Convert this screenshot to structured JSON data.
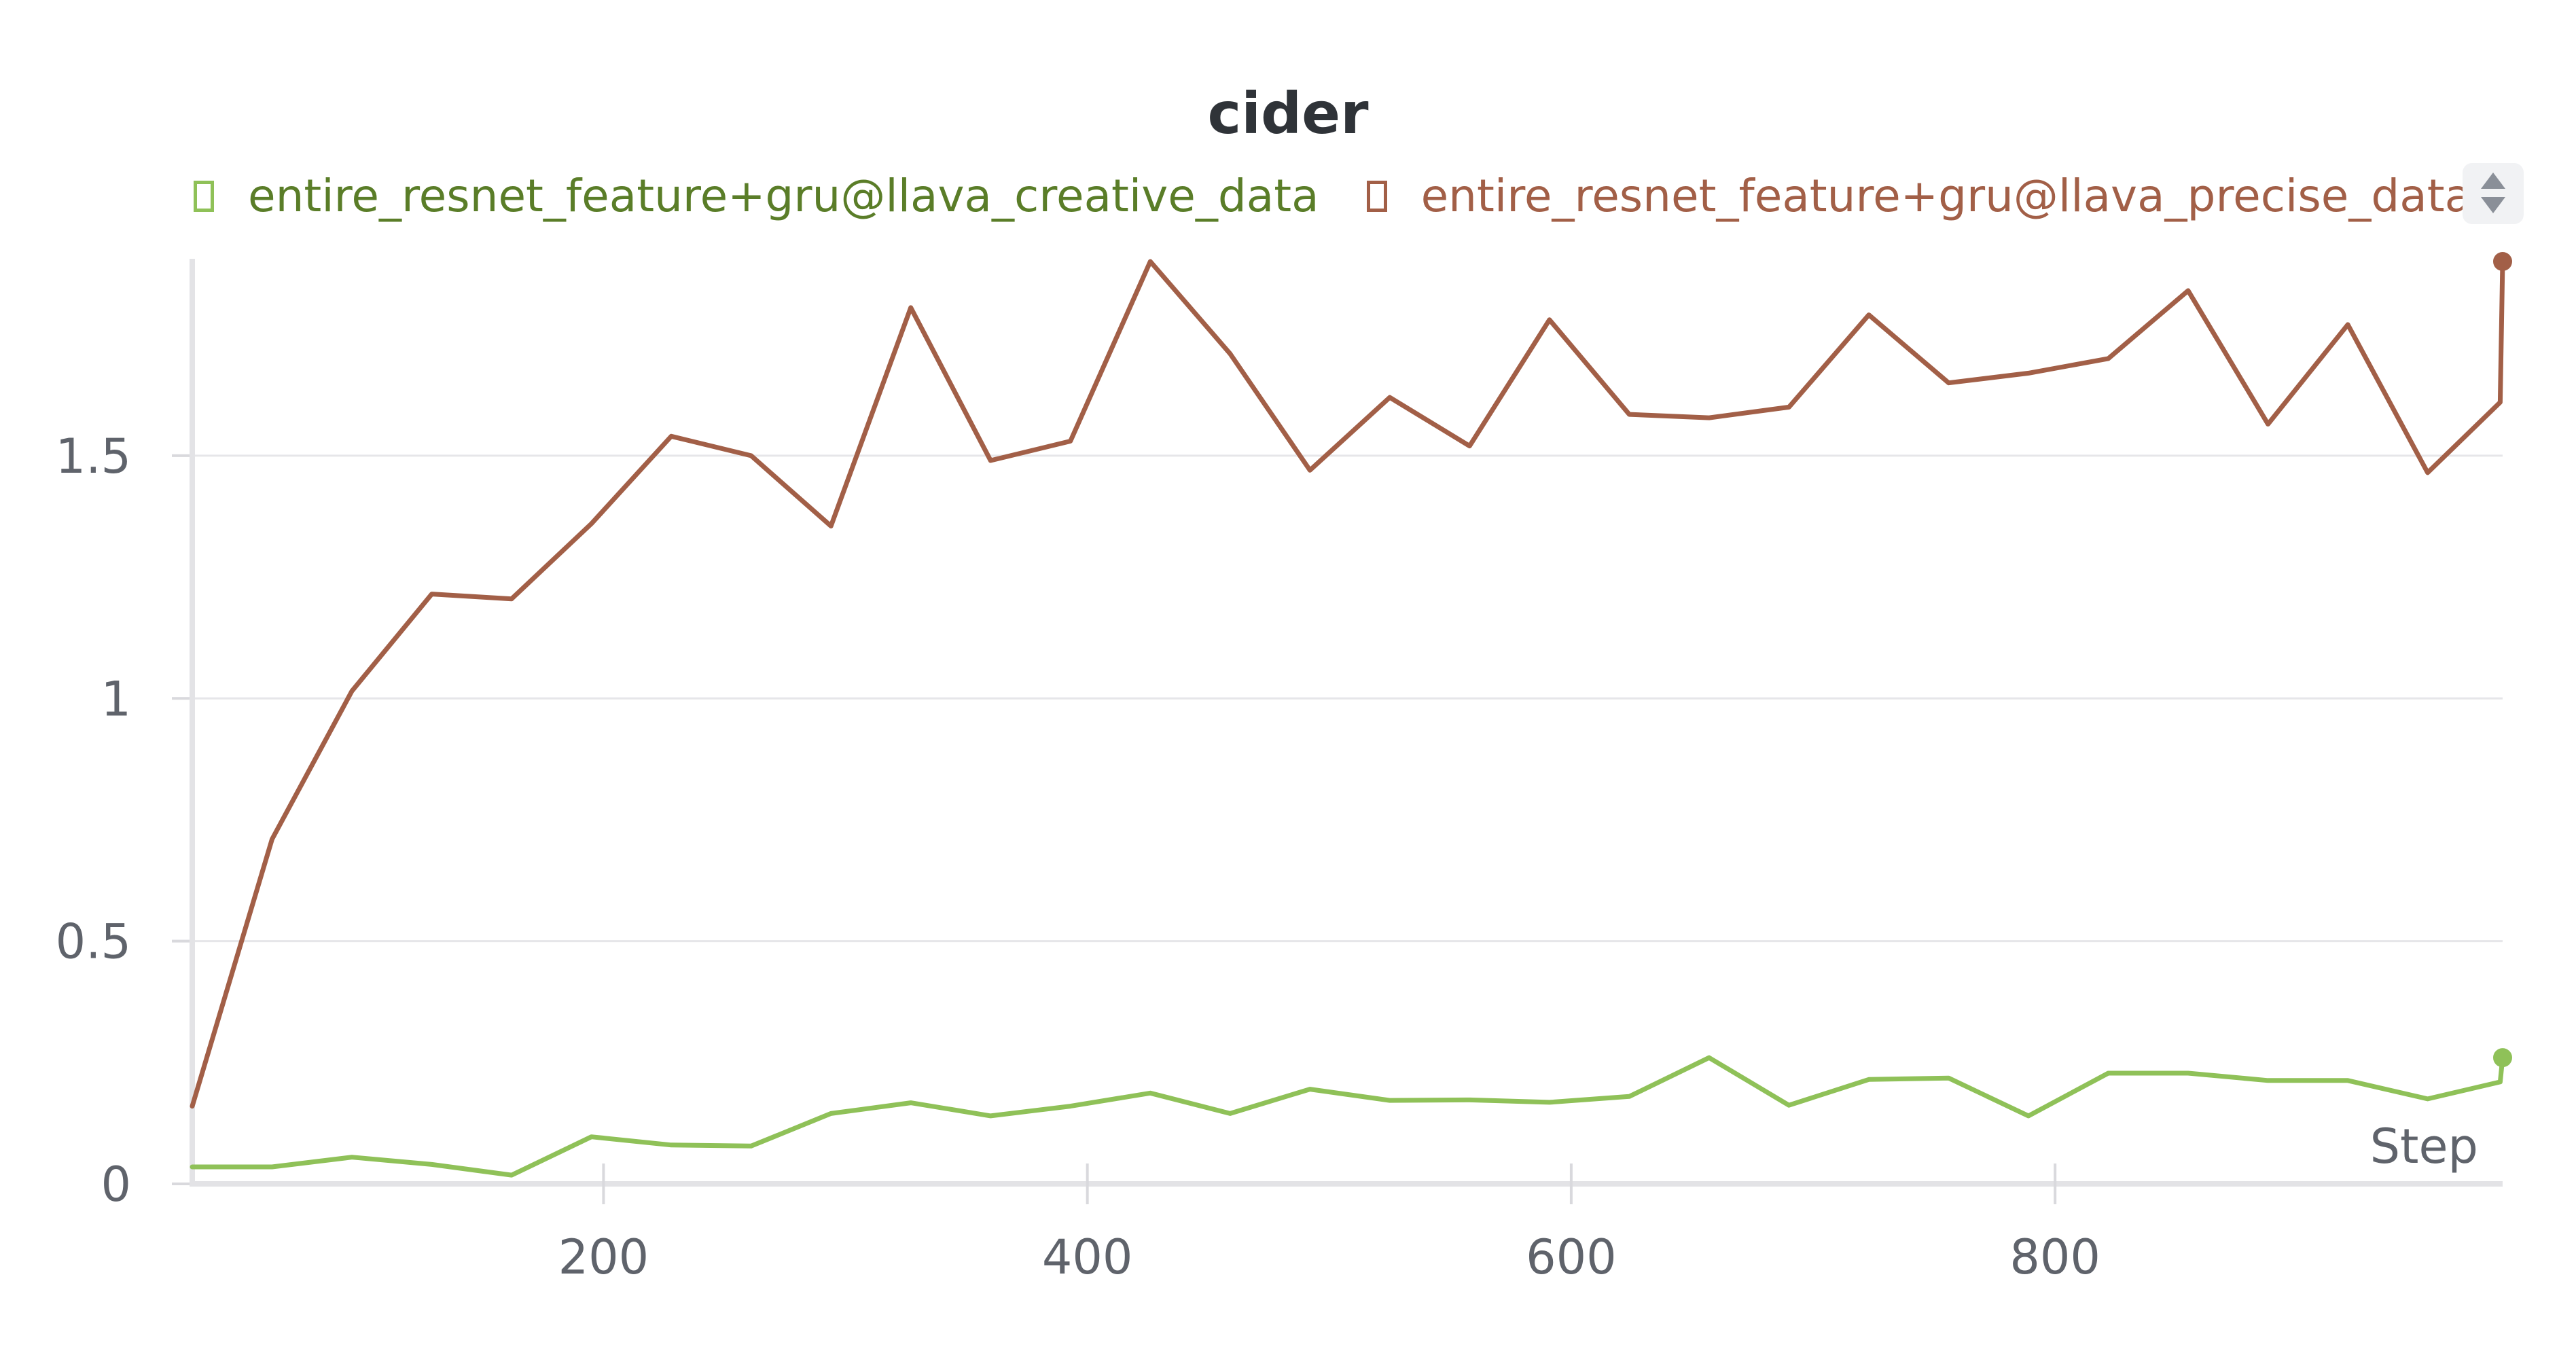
{
  "chart_data": {
    "type": "line",
    "title": "cider",
    "xlabel": "Step",
    "ylabel": "",
    "xlim": [
      30,
      985
    ],
    "ylim": [
      0,
      1.9
    ],
    "grid": true,
    "legend_position": "top",
    "xticks": [
      200,
      400,
      600,
      800
    ],
    "yticks": [
      0,
      0.5,
      1,
      1.5
    ],
    "ytick_labels": [
      "0",
      "0.5",
      "1",
      "1.5"
    ],
    "series": [
      {
        "name": "entire_resnet_feature+gru@llava_creative_data",
        "color": "#8fc158",
        "legend_text_color": "#5a7d28",
        "x": [
          30,
          63,
          96,
          129,
          162,
          195,
          228,
          261,
          294,
          327,
          360,
          393,
          426,
          459,
          492,
          525,
          558,
          591,
          624,
          657,
          690,
          723,
          756,
          789,
          822,
          855,
          888,
          921,
          954,
          984,
          985
        ],
        "y": [
          0.035,
          0.035,
          0.055,
          0.04,
          0.018,
          0.097,
          0.08,
          0.078,
          0.145,
          0.167,
          0.14,
          0.16,
          0.187,
          0.145,
          0.195,
          0.172,
          0.173,
          0.168,
          0.18,
          0.26,
          0.162,
          0.215,
          0.218,
          0.14,
          0.228,
          0.228,
          0.213,
          0.213,
          0.175,
          0.21,
          0.26
        ]
      },
      {
        "name": "entire_resnet_feature+gru@llava_precise_data",
        "color": "#a25f47",
        "legend_text_color": "#a25f47",
        "x": [
          30,
          63,
          96,
          129,
          162,
          195,
          228,
          261,
          294,
          327,
          360,
          393,
          426,
          459,
          492,
          525,
          558,
          591,
          624,
          657,
          690,
          723,
          756,
          789,
          822,
          855,
          888,
          921,
          954,
          984,
          985
        ],
        "y": [
          0.16,
          0.71,
          1.015,
          1.215,
          1.205,
          1.36,
          1.54,
          1.5,
          1.355,
          1.805,
          1.49,
          1.53,
          1.9,
          1.71,
          1.47,
          1.62,
          1.52,
          1.78,
          1.585,
          1.578,
          1.6,
          1.79,
          1.65,
          1.67,
          1.7,
          1.84,
          1.565,
          1.77,
          1.465,
          1.61,
          1.9
        ]
      }
    ]
  }
}
